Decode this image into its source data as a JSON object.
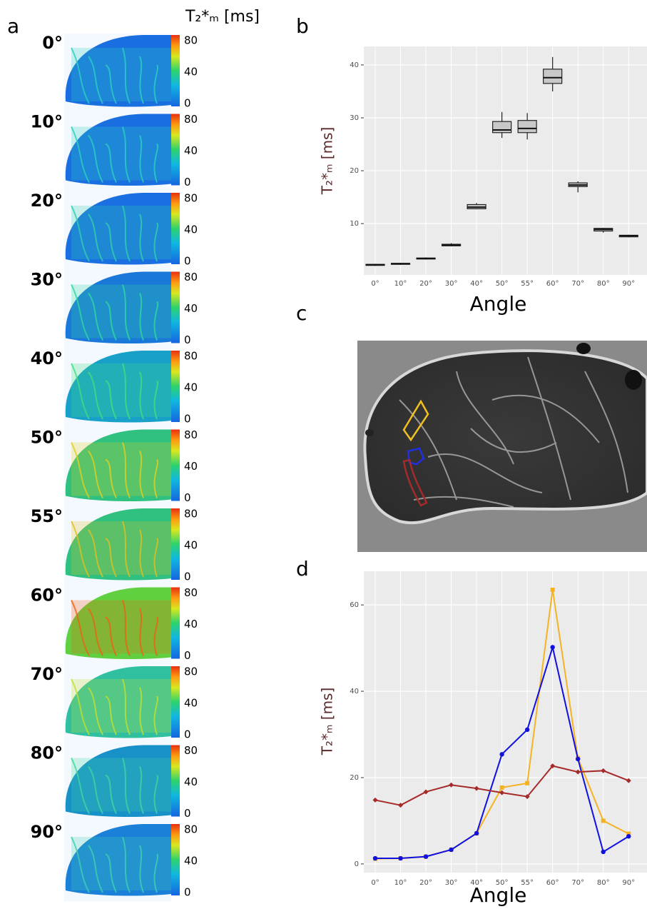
{
  "panel_labels": [
    "a",
    "b",
    "c",
    "d"
  ],
  "panel_a": {
    "colorbar_title": "T₂*ₘ [ms]",
    "angles": [
      "0°",
      "10°",
      "20°",
      "30°",
      "40°",
      "50°",
      "55°",
      "60°",
      "70°",
      "80°",
      "90°"
    ],
    "colorbar_ticks": [
      80,
      40,
      0
    ]
  },
  "chart_data": [
    {
      "type": "box",
      "x_label": "Angle",
      "y_label": "T₂*ₘ [ms]",
      "categories": [
        "0°",
        "10°",
        "20°",
        "30°",
        "40°",
        "50°",
        "55°",
        "60°",
        "70°",
        "80°",
        "90°"
      ],
      "color": "#c8c8c8",
      "whisker_low": [
        2.0,
        2.2,
        3.2,
        5.7,
        12.7,
        26.2,
        25.9,
        35.0,
        15.9,
        8.3,
        7.4
      ],
      "q1": [
        2.1,
        2.3,
        3.3,
        5.8,
        12.8,
        27.2,
        27.2,
        36.5,
        17.0,
        8.6,
        7.5
      ],
      "median": [
        2.2,
        2.4,
        3.4,
        5.9,
        13.1,
        27.7,
        28.0,
        37.6,
        17.3,
        8.9,
        7.7
      ],
      "q3": [
        2.3,
        2.5,
        3.5,
        6.1,
        13.6,
        29.3,
        29.5,
        39.2,
        17.7,
        9.1,
        7.8
      ],
      "whisker_high": [
        2.4,
        2.6,
        3.6,
        6.3,
        13.9,
        31.1,
        30.9,
        41.5,
        18.0,
        9.2,
        7.9
      ],
      "ylim": [
        0.3,
        43.5
      ],
      "yticks": [
        10,
        20,
        30,
        40
      ],
      "grid": true
    },
    {
      "type": "line",
      "x_label": "Angle",
      "y_label": "T₂*ₘ [ms]",
      "categories": [
        "0°",
        "10°",
        "20°",
        "30°",
        "40°",
        "50°",
        "55°",
        "60°",
        "70°",
        "80°",
        "90°"
      ],
      "series": [
        {
          "color": "#f5b324",
          "marker": "square",
          "values": [
            1.2,
            1.3,
            1.7,
            3.3,
            7.1,
            17.7,
            18.7,
            63.5,
            24.5,
            10.0,
            7.0
          ]
        },
        {
          "color": "#1010e0",
          "marker": "circle",
          "values": [
            1.3,
            1.3,
            1.7,
            3.3,
            7.1,
            25.4,
            31.1,
            50.2,
            24.3,
            2.8,
            6.4
          ]
        },
        {
          "color": "#a52a2a",
          "marker": "diamond",
          "values": [
            14.8,
            13.6,
            16.7,
            18.3,
            17.5,
            16.5,
            15.6,
            22.7,
            21.3,
            21.6,
            19.3
          ]
        }
      ],
      "ylim": [
        -2,
        67.8
      ],
      "yticks": [
        0,
        20,
        40,
        60
      ],
      "grid": true
    }
  ]
}
